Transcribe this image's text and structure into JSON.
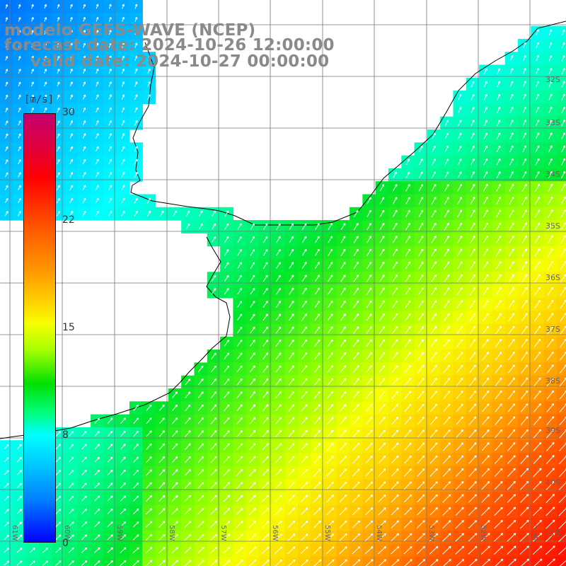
{
  "title": {
    "line1": "modelo GEFS-WAVE (NCEP)",
    "line2": "forecast date: 2024-10-26 12:00:00",
    "line3": "valid date: 2024-10-27 00:00:00"
  },
  "colorbar": {
    "unit": "[m/s]",
    "ticks": [
      "30",
      "22",
      "15",
      "8",
      "0"
    ]
  },
  "lat_labels": [
    "32S",
    "33S",
    "34S",
    "35S",
    "36S",
    "37S",
    "38S",
    "39S",
    "40S",
    "41S"
  ],
  "lon_labels": [
    "61W",
    "60W",
    "59W",
    "58W",
    "57W",
    "56W",
    "55W",
    "54W",
    "53W",
    "52W",
    "51W"
  ],
  "colors": {
    "land": "#ffffff",
    "grid": "#777777",
    "coast": "#000000",
    "arrows": "#ffffff",
    "label": "#8a8a8a"
  }
}
